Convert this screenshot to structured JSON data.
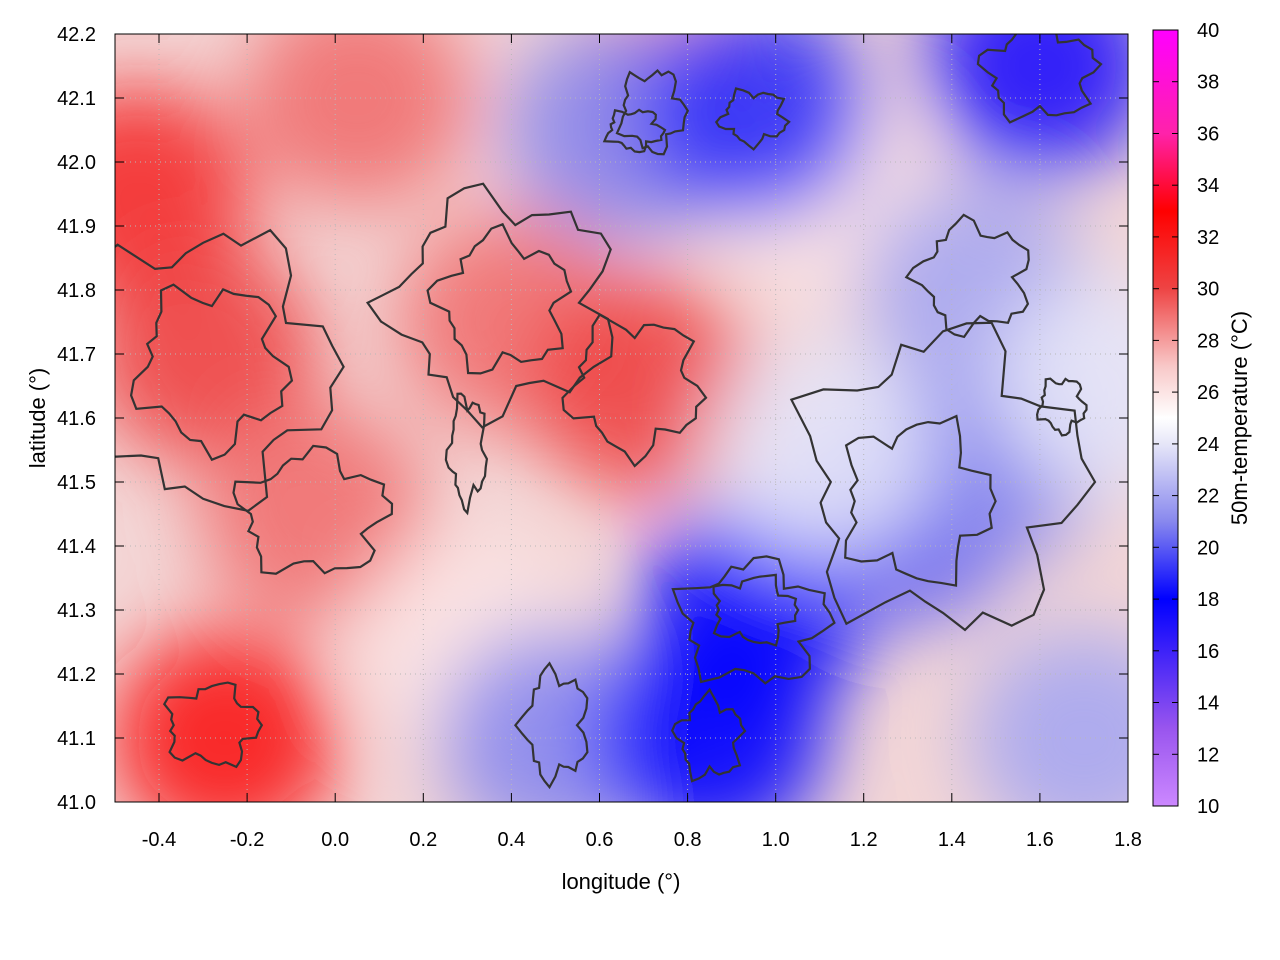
{
  "chart_data": {
    "type": "heatmap",
    "title": "",
    "xlabel": "longitude (°)",
    "ylabel": "latitude (°)",
    "colorbar_label": "50m-temperature (°C)",
    "xlim": [
      -0.5,
      1.8
    ],
    "ylim": [
      41.0,
      42.2
    ],
    "x_ticks": [
      -0.4,
      -0.2,
      0.0,
      0.2,
      0.4,
      0.6,
      0.8,
      1.0,
      1.2,
      1.4,
      1.6,
      1.8
    ],
    "x_tick_labels": [
      "-0.4",
      "-0.2",
      "0.0",
      "0.2",
      "0.4",
      "0.6",
      "0.8",
      "1.0",
      "1.2",
      "1.4",
      "1.6",
      "1.8"
    ],
    "y_ticks": [
      41.0,
      41.1,
      41.2,
      41.3,
      41.4,
      41.5,
      41.6,
      41.7,
      41.8,
      41.9,
      42.0,
      42.1,
      42.2
    ],
    "y_tick_labels": [
      "41.0",
      "41.1",
      "41.2",
      "41.3",
      "41.4",
      "41.5",
      "41.6",
      "41.7",
      "41.8",
      "41.9",
      "42.0",
      "42.1",
      "42.2"
    ],
    "colorbar_range": [
      10,
      40
    ],
    "colorbar_ticks": [
      10,
      12,
      14,
      16,
      18,
      20,
      22,
      24,
      26,
      28,
      30,
      32,
      34,
      36,
      38,
      40
    ],
    "colorbar_tick_labels": [
      "10",
      "12",
      "14",
      "16",
      "18",
      "20",
      "22",
      "24",
      "26",
      "28",
      "30",
      "32",
      "34",
      "36",
      "38",
      "40"
    ],
    "colormap": [
      {
        "value": 10,
        "color": "#cc88ff"
      },
      {
        "value": 13,
        "color": "#9955ee"
      },
      {
        "value": 18,
        "color": "#0000ff"
      },
      {
        "value": 21,
        "color": "#8888ee"
      },
      {
        "value": 24,
        "color": "#e6e6f8"
      },
      {
        "value": 25,
        "color": "#ffffff"
      },
      {
        "value": 27,
        "color": "#f8c8c8"
      },
      {
        "value": 30,
        "color": "#ee4444"
      },
      {
        "value": 33,
        "color": "#ff0000"
      },
      {
        "value": 36,
        "color": "#ff22aa"
      },
      {
        "value": 40,
        "color": "#ff00ff"
      }
    ],
    "field_centers": [
      {
        "x": -0.45,
        "y": 41.95,
        "value": 31
      },
      {
        "x": -0.3,
        "y": 41.7,
        "value": 30
      },
      {
        "x": -0.25,
        "y": 41.1,
        "value": 32
      },
      {
        "x": -0.05,
        "y": 41.45,
        "value": 29
      },
      {
        "x": 0.05,
        "y": 42.1,
        "value": 29
      },
      {
        "x": 0.4,
        "y": 41.75,
        "value": 29
      },
      {
        "x": 0.7,
        "y": 41.65,
        "value": 30
      },
      {
        "x": 0.75,
        "y": 42.1,
        "value": 28
      },
      {
        "x": 0.3,
        "y": 41.25,
        "value": 26
      },
      {
        "x": 1.1,
        "y": 41.95,
        "value": 26
      },
      {
        "x": 0.5,
        "y": 41.1,
        "value": 21
      },
      {
        "x": 0.65,
        "y": 42.05,
        "value": 21
      },
      {
        "x": 0.95,
        "y": 42.08,
        "value": 19
      },
      {
        "x": 0.95,
        "y": 41.3,
        "value": 18
      },
      {
        "x": 0.85,
        "y": 41.1,
        "value": 18
      },
      {
        "x": 1.3,
        "y": 41.45,
        "value": 20
      },
      {
        "x": 1.5,
        "y": 41.55,
        "value": 21
      },
      {
        "x": 1.6,
        "y": 42.15,
        "value": 17
      },
      {
        "x": 1.7,
        "y": 41.1,
        "value": 22
      },
      {
        "x": 1.45,
        "y": 41.8,
        "value": 22
      },
      {
        "x": 1.75,
        "y": 41.65,
        "value": 24
      },
      {
        "x": 1.1,
        "y": 41.55,
        "value": 24
      }
    ]
  }
}
